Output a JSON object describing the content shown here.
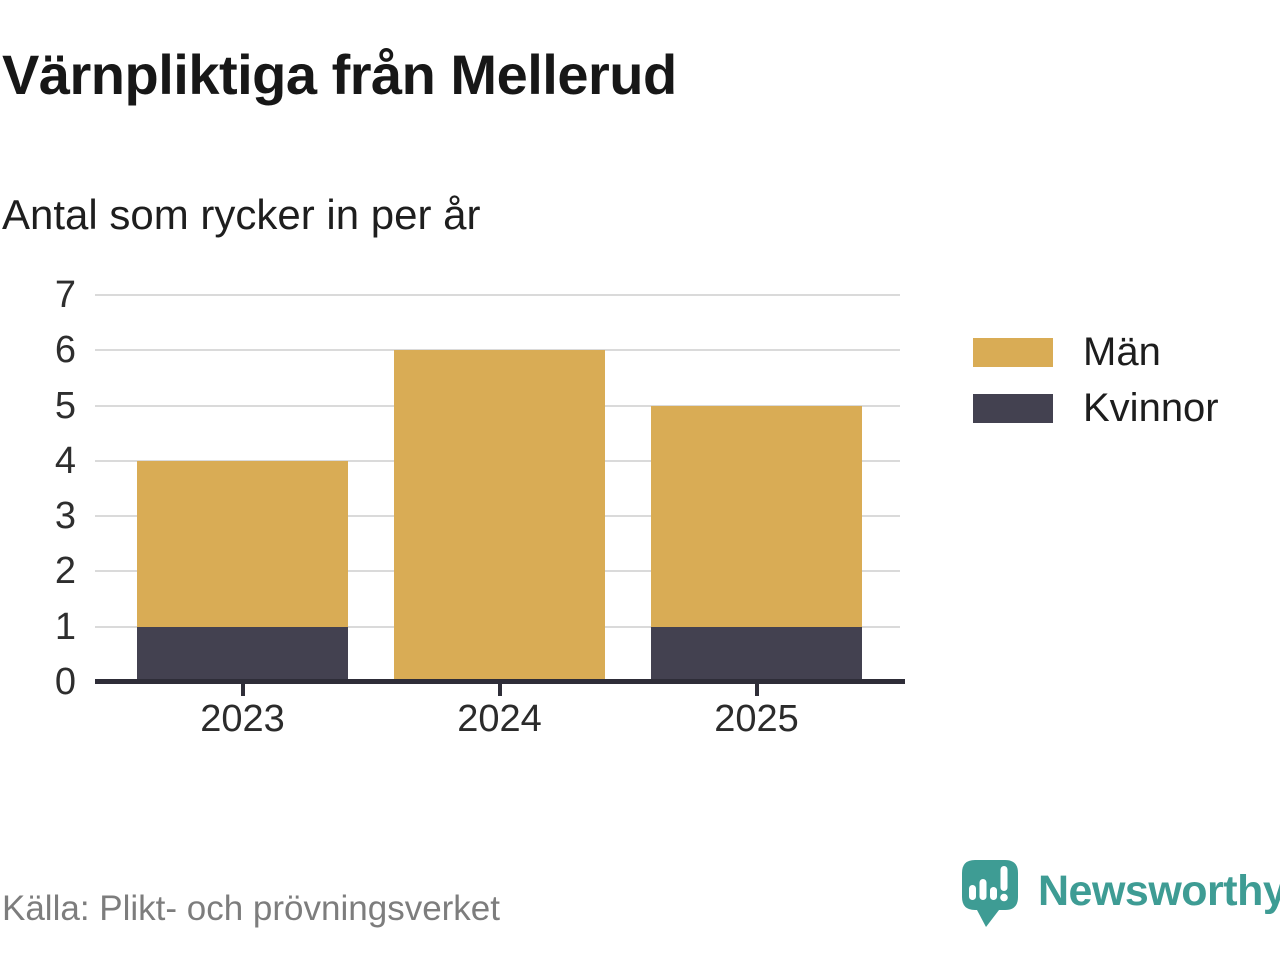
{
  "header": {
    "title": "Värnpliktiga från Mellerud",
    "subtitle": "Antal som rycker in per år"
  },
  "legend": {
    "items": [
      {
        "label": "Män",
        "color": "#d9ac55"
      },
      {
        "label": "Kvinnor",
        "color": "#434150"
      }
    ]
  },
  "footer": {
    "source": "Källa: Plikt- och prövningsverket",
    "brand_name": "Newsworthy",
    "brand_color": "#3e9c94"
  },
  "colors": {
    "axis_line": "#2e2d38",
    "gridline": "#dadada",
    "tick_label": "#2e2e2e",
    "source_text": "#7d7d7d"
  },
  "chart_data": {
    "type": "bar",
    "stacked": true,
    "title": "Värnpliktiga från Mellerud",
    "subtitle": "Antal som rycker in per år",
    "categories": [
      "2023",
      "2024",
      "2025"
    ],
    "series": [
      {
        "name": "Män",
        "color": "#d9ac55",
        "values": [
          3,
          6,
          4
        ]
      },
      {
        "name": "Kvinnor",
        "color": "#434150",
        "values": [
          1,
          0,
          1
        ]
      }
    ],
    "stack_totals": [
      4,
      6,
      5
    ],
    "xlabel": "",
    "ylabel": "",
    "ylim": [
      0,
      7
    ],
    "yticks": [
      0,
      1,
      2,
      3,
      4,
      5,
      6,
      7
    ],
    "grid": true,
    "legend_position": "right"
  }
}
